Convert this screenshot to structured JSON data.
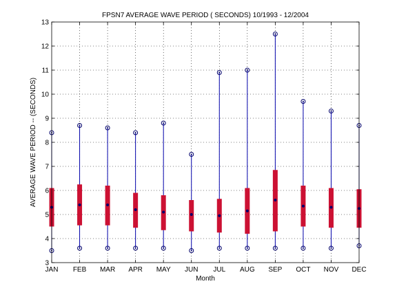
{
  "chart_data": {
    "type": "box",
    "title": "FPSN7  AVERAGE WAVE PERIOD ( SECONDS) 10/1993 - 12/2004",
    "xlabel": "Month",
    "ylabel": "AVERAGE WAVE PERIOD -- (SECONDS)",
    "ylim": [
      3,
      13
    ],
    "yticks": [
      "3",
      "4",
      "5",
      "6",
      "7",
      "8",
      "9",
      "10",
      "11",
      "12",
      "13"
    ],
    "grid": true,
    "categories": [
      "JAN",
      "FEB",
      "MAR",
      "APR",
      "MAY",
      "JUN",
      "JUL",
      "AUG",
      "SEP",
      "OCT",
      "NOV",
      "DEC"
    ],
    "stats": [
      {
        "month": "JAN",
        "min": 3.5,
        "q1": 4.5,
        "median": 5.3,
        "q3": 6.1,
        "max": 8.4
      },
      {
        "month": "FEB",
        "min": 3.6,
        "q1": 4.55,
        "median": 5.4,
        "q3": 6.25,
        "max": 8.7
      },
      {
        "month": "MAR",
        "min": 3.6,
        "q1": 4.55,
        "median": 5.4,
        "q3": 6.2,
        "max": 8.6
      },
      {
        "month": "APR",
        "min": 3.6,
        "q1": 4.45,
        "median": 5.2,
        "q3": 5.9,
        "max": 8.4
      },
      {
        "month": "MAY",
        "min": 3.6,
        "q1": 4.35,
        "median": 5.1,
        "q3": 5.8,
        "max": 8.8
      },
      {
        "month": "JUN",
        "min": 3.5,
        "q1": 4.3,
        "median": 5.0,
        "q3": 5.6,
        "max": 7.5
      },
      {
        "month": "JUL",
        "min": 3.6,
        "q1": 4.25,
        "median": 4.95,
        "q3": 5.65,
        "max": 10.9
      },
      {
        "month": "AUG",
        "min": 3.6,
        "q1": 4.2,
        "median": 5.15,
        "q3": 6.1,
        "max": 11.0
      },
      {
        "month": "SEP",
        "min": 3.6,
        "q1": 4.3,
        "median": 5.6,
        "q3": 6.85,
        "max": 12.5
      },
      {
        "month": "OCT",
        "min": 3.6,
        "q1": 4.5,
        "median": 5.35,
        "q3": 6.2,
        "max": 9.7
      },
      {
        "month": "NOV",
        "min": 3.6,
        "q1": 4.45,
        "median": 5.3,
        "q3": 6.1,
        "max": 9.3
      },
      {
        "month": "DEC",
        "min": 3.7,
        "q1": 4.45,
        "median": 5.25,
        "q3": 6.05,
        "max": 8.7
      }
    ],
    "colors": {
      "whisker": "#0000aa",
      "box": "#cc1133",
      "marker": "#00006b",
      "grid": "#000000",
      "axis": "#000000"
    }
  }
}
